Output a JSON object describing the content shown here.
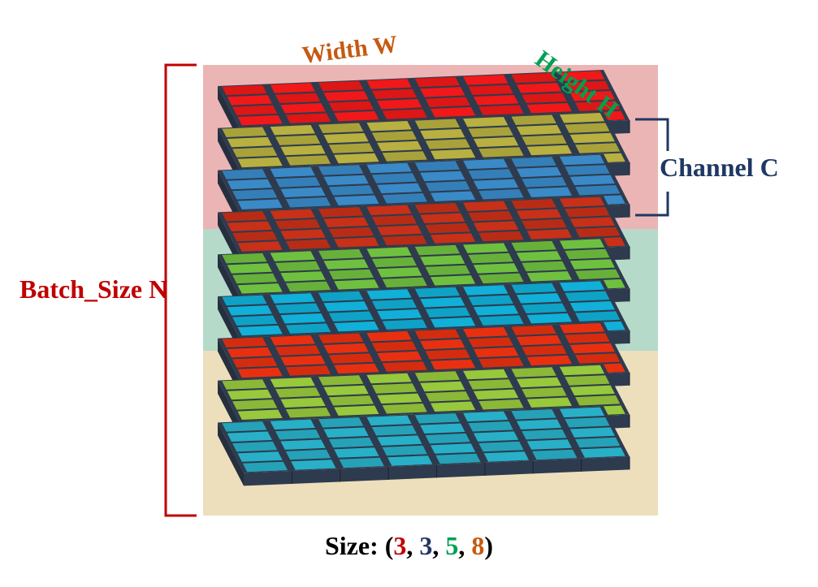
{
  "labels": {
    "width": "Width W",
    "height": "Height H",
    "channel": "Channel C",
    "batch": "Batch_Size N"
  },
  "size": {
    "prefix": "Size: (",
    "values": [
      "3",
      "3",
      "5",
      "8"
    ],
    "separator": ", ",
    "suffix": ")"
  },
  "dims": {
    "batch": 3,
    "channel": 3,
    "height": 5,
    "width": 8
  },
  "colors": {
    "width_label": "#c55a11",
    "height_label": "#00a050",
    "channel_label": "#1f3864",
    "batch_label": "#c00000",
    "bracket_batch": "#c00000",
    "bracket_channel": "#1f3864",
    "size_values": [
      "#c00000",
      "#1f3864",
      "#00a050",
      "#c55a11"
    ],
    "band_tints": [
      "#e8a8a8",
      "#a8d4c0",
      "#ead9b0"
    ],
    "slab_edge": "#2e3b4e",
    "layer_tops": [
      [
        "#f01818",
        "#b8b040",
        "#3a8ac8"
      ],
      [
        "#c83018",
        "#70c040",
        "#10b0d8"
      ],
      [
        "#e83010",
        "#98c83c",
        "#28b0c8"
      ]
    ]
  }
}
